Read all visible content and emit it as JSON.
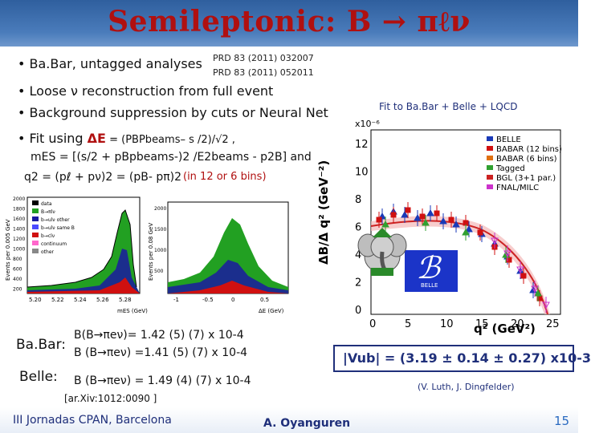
{
  "title": "Semileptonic: B → πℓν",
  "bullets": {
    "b1": "• Ba.Bar, untagged analyses",
    "ref1": "PRD 83 (2011) 032007",
    "ref2": "PRD 83 (2011) 052011",
    "b2": "• Loose ν reconstruction from full event",
    "b3": "• Background suppression by cuts or Neural Net",
    "b4a": "• Fit using ",
    "b4b": "ΔE",
    "b4c": " = (PBPbeams– s /2)/√2 ,",
    "mes": "mES = [(s/2 + pBpbeams-)2 /E2beams - p2B] and",
    "q2": "q2 = (pℓ + pν)2 = (pB- pπ)2",
    "bins": "(in 12 or 6 bins)"
  },
  "fit_label": "Fit to Ba.Bar + Belle + LQCD",
  "left_plot": {
    "ylabel1": "Events per 0.005 GeV",
    "ylabel2": "Events per 0.08 GeV",
    "xlabel1": "mES (GeV)",
    "xlabel2": "ΔE (GeV)",
    "legend": [
      "data",
      "B→πlν",
      "b→ulν other",
      "b→ulν same B",
      "b→clν",
      "continuum",
      "other"
    ],
    "yticks1": [
      "2000",
      "1800",
      "1600",
      "1400",
      "1200",
      "1000",
      "800",
      "600",
      "400",
      "200"
    ],
    "xticks1": [
      "5.20",
      "5.22",
      "5.24",
      "5.26",
      "5.28"
    ],
    "yticks2": [
      "2000",
      "1500",
      "1000",
      "500"
    ],
    "xticks2": [
      "-1",
      "-0.5",
      "0",
      "0.5"
    ]
  },
  "right_plot": {
    "ylabel": "ΔB/Δ q² (GeV⁻²)",
    "xlabel": "q² (GeV²)",
    "exponent": "x10⁻⁶",
    "yticks": [
      "12",
      "10",
      "8",
      "6",
      "4",
      "2",
      "0"
    ],
    "xticks": [
      "0",
      "5",
      "10",
      "15",
      "20",
      "25"
    ],
    "legend": [
      "BELLE",
      "BABAR (12 bins)",
      "BABAR (6 bins)",
      "Tagged",
      "BGL (3+1 par.)",
      "FNAL/MILC"
    ],
    "logo_text": "BELLE",
    "colors": {
      "belle": "#1a3ab8",
      "babar12": "#d01010",
      "babar6": "#e07010",
      "tagged": "#30a030",
      "bgl": "#cc2222",
      "fnal": "#cc33cc"
    }
  },
  "results": {
    "babar_label": "Ba.Bar:",
    "babar1": "B(B→πeν)= 1.42 (5) (7) x 10-4",
    "babar2": "B (B→πeν) =1.41 (5) (7) x 10-4",
    "belle_label": "Belle:",
    "belle1": "B (B→πeν) = 1.49 (4) (7) x 10-4",
    "arxiv": "[ar.Xiv:1012:0090 ]",
    "vub": "|Vub| = (3.19 ± 0.14 ± 0.27) x10-3",
    "authors": "(V. Luth, J. Dingfelder)"
  },
  "footer": {
    "left": "III Jornadas CPAN, Barcelona",
    "center": "A. Oyanguren",
    "page": "15"
  }
}
